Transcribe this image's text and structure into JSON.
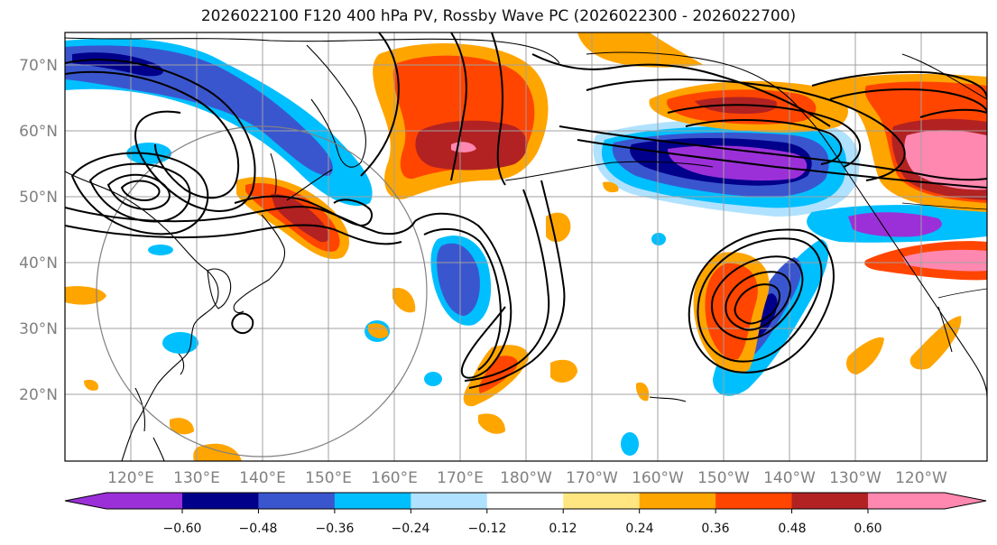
{
  "title": "2026022100 F120 400 hPa PV, Rossby Wave PC (2026022300 - 2026022700)",
  "map": {
    "lat_labels": [
      "70°N",
      "60°N",
      "50°N",
      "40°N",
      "30°N",
      "20°N"
    ],
    "lon_labels": [
      "120°E",
      "130°E",
      "140°E",
      "150°E",
      "160°E",
      "170°E",
      "180°W",
      "170°W",
      "160°W",
      "150°W",
      "140°W",
      "130°W",
      "120°W"
    ],
    "lat_range": [
      10,
      75
    ],
    "lon_range": [
      110,
      250
    ],
    "grid": true
  },
  "colorbar": {
    "tick_labels": [
      "−0.60",
      "−0.48",
      "−0.36",
      "−0.24",
      "−0.12",
      "0.12",
      "0.24",
      "0.36",
      "0.48",
      "0.60"
    ],
    "colors": [
      "#9b30d8",
      "#00008b",
      "#3a56cf",
      "#00bfff",
      "#b0e2ff",
      "#ffffff",
      "#ffe680",
      "#ffa500",
      "#ff4500",
      "#b22222",
      "#ff88b0"
    ],
    "extend": "both"
  },
  "colors": {
    "neg_strong": "#9b30d8",
    "neg_dark": "#00008b",
    "neg_mid": "#3a56cf",
    "neg_light": "#00bfff",
    "neg_pale": "#b0e2ff",
    "pos_pale": "#ffe680",
    "pos_light": "#ffa500",
    "pos_mid": "#ff4500",
    "pos_dark": "#b22222",
    "pos_strong": "#ff88b0",
    "grid": "#a0a0a0",
    "coast": "#000000",
    "contour": "#000000"
  }
}
